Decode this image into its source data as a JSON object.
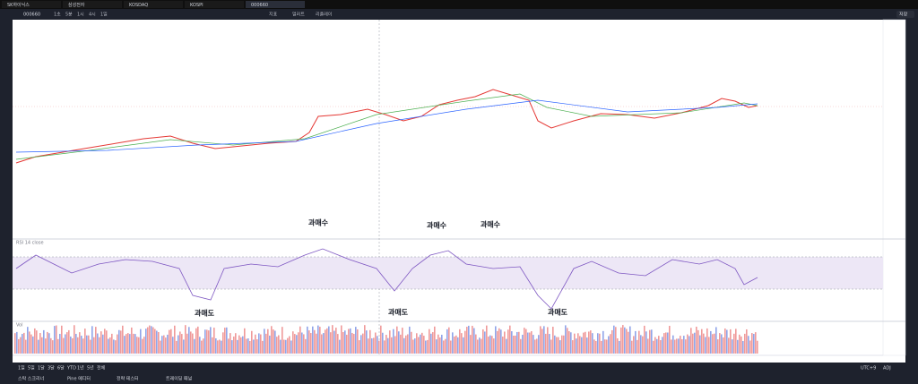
{
  "tabs": [
    "SK하이닉스",
    "삼성전자",
    "KOSDAQ",
    "KOSPI",
    "000660"
  ],
  "toolbar": {
    "symbol": "000660",
    "intervals": [
      "1초",
      "5분",
      "1시",
      "4시",
      "1일"
    ],
    "buttons": [
      "지표",
      "얼러트",
      "리플레이"
    ],
    "save": "저장"
  },
  "annotations": {
    "overbought": [
      "과매수",
      "과매수",
      "과매수"
    ],
    "oversold": [
      "과매도",
      "과매도",
      "과매도"
    ]
  },
  "panes": {
    "rsi": "RSI 14 close",
    "volume": "Vol"
  },
  "ranges": [
    "1일",
    "5일",
    "1달",
    "3달",
    "6달",
    "YTD",
    "1년",
    "5년",
    "전체"
  ],
  "bottom_tabs": [
    "스탁 스크리너",
    "Pine 에디터",
    "전략 테스터",
    "트레이딩 패널"
  ],
  "status": {
    "time": "UTC+9",
    "mode": "ADJ"
  }
}
